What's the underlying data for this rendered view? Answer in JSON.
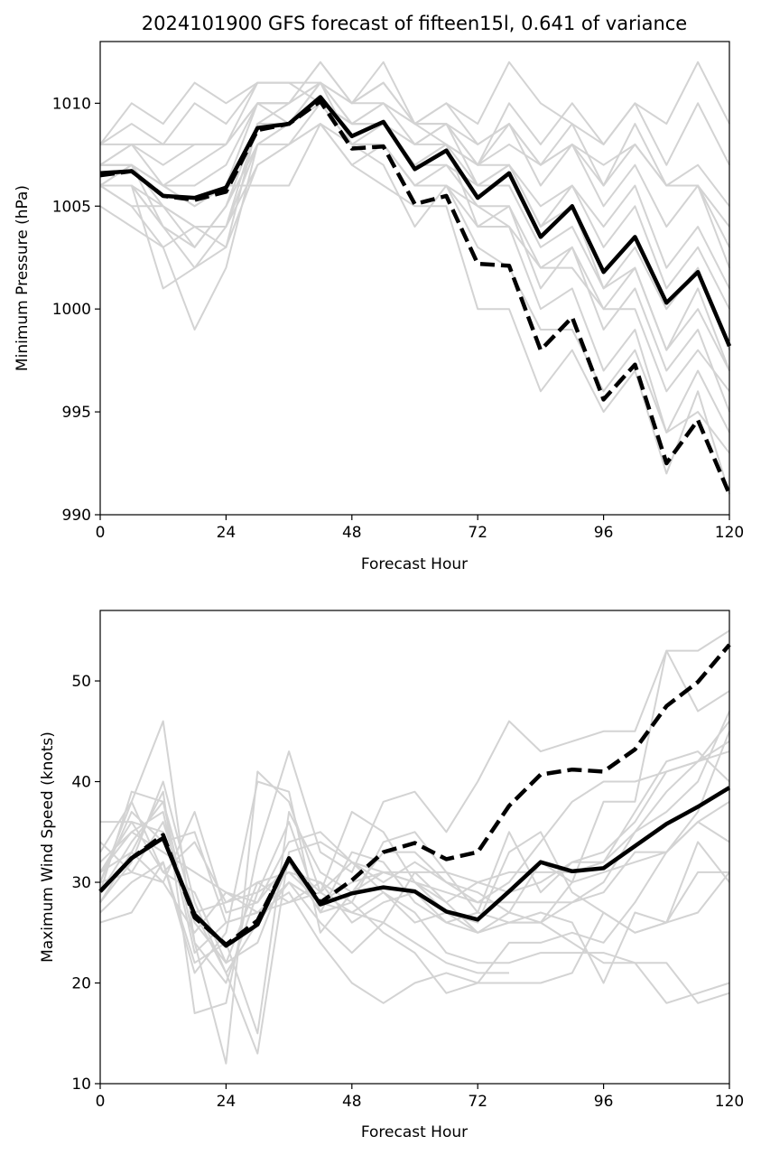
{
  "chart_data": [
    {
      "type": "line",
      "title": "2024101900 GFS forecast of fifteen15l, 0.641 of variance",
      "xlabel": "Forecast Hour",
      "ylabel": "Minimum Pressure (hPa)",
      "xlim": [
        0,
        120
      ],
      "ylim": [
        990,
        1013
      ],
      "xticks": [
        0,
        24,
        48,
        72,
        96,
        120
      ],
      "yticks": [
        990,
        995,
        1000,
        1005,
        1010
      ],
      "x": [
        0,
        6,
        12,
        18,
        24,
        30,
        36,
        42,
        48,
        54,
        60,
        66,
        72,
        78,
        84,
        90,
        96,
        102,
        108,
        114,
        120
      ],
      "colors": {
        "ensemble": "#d3d3d3",
        "highlight": "#000000"
      },
      "series": [
        {
          "style": "solid-black",
          "values": [
            1006.6,
            1006.7,
            1005.5,
            1005.4,
            1005.9,
            1008.8,
            1009.0,
            1010.3,
            1008.4,
            1009.1,
            1006.8,
            1007.7,
            1005.4,
            1006.6,
            1003.5,
            1005.0,
            1001.8,
            1003.5,
            1000.3,
            1001.8,
            998.2
          ]
        },
        {
          "style": "dashed-black",
          "values": [
            1006.5,
            1006.7,
            1005.5,
            1005.3,
            1005.7,
            1008.7,
            1009.0,
            1010.1,
            1007.8,
            1007.9,
            1005.1,
            1005.5,
            1002.2,
            1002.1,
            998.0,
            999.6,
            995.6,
            997.3,
            992.5,
            994.6,
            991.0
          ]
        },
        {
          "style": "ensemble",
          "values": [
            1006,
            1007,
            1005,
            1004,
            1003,
            1009,
            1010,
            1011,
            1009,
            1010,
            1008,
            1009,
            1006,
            1007,
            1004,
            1006,
            1003,
            1005,
            1001,
            1003,
            1000
          ]
        },
        {
          "style": "ensemble",
          "values": [
            1007,
            1008,
            1006,
            1005,
            1006,
            1010,
            1010,
            1012,
            1010,
            1011,
            1009,
            1010,
            1008,
            1009,
            1006,
            1008,
            1005,
            1007,
            1004,
            1006,
            1003
          ]
        },
        {
          "style": "ensemble",
          "values": [
            1008,
            1010,
            1009,
            1011,
            1010,
            1011,
            1011,
            1011,
            1010,
            1012,
            1009,
            1010,
            1009,
            1012,
            1010,
            1009,
            1008,
            1010,
            1009,
            1012,
            1009
          ]
        },
        {
          "style": "ensemble",
          "values": [
            1006,
            1006,
            1004,
            1002,
            1004,
            1008,
            1009,
            1010,
            1008,
            1009,
            1007,
            1008,
            1004,
            1005,
            1001,
            1003,
            999,
            1001,
            997,
            999,
            995
          ]
        },
        {
          "style": "ensemble",
          "values": [
            1005,
            1004,
            1003,
            999,
            1002,
            1008,
            1008,
            1009,
            1007,
            1006,
            1005,
            1005,
            1000,
            1000,
            996,
            998,
            995,
            997,
            992,
            996,
            991
          ]
        },
        {
          "style": "ensemble",
          "values": [
            1006,
            1006,
            1001,
            1002,
            1003,
            1007,
            1008,
            1010,
            1008,
            1007,
            1004,
            1006,
            1003,
            1002,
            999,
            999,
            996,
            998,
            994,
            995,
            993
          ]
        },
        {
          "style": "ensemble",
          "values": [
            1007,
            1007,
            1004,
            1003,
            1005,
            1009,
            1009,
            1010,
            1009,
            1009,
            1008,
            1008,
            1007,
            1007,
            1005,
            1006,
            1004,
            1006,
            1002,
            1004,
            1001
          ]
        },
        {
          "style": "ensemble",
          "values": [
            1008,
            1009,
            1008,
            1010,
            1009,
            1011,
            1011,
            1010,
            1009,
            1010,
            1009,
            1008,
            1007,
            1009,
            1007,
            1008,
            1006,
            1008,
            1006,
            1006,
            1002
          ]
        },
        {
          "style": "ensemble",
          "values": [
            1006,
            1007,
            1006,
            1007,
            1008,
            1010,
            1010,
            1012,
            1010,
            1011,
            1009,
            1009,
            1008,
            1009,
            1007,
            1009,
            1006,
            1009,
            1006,
            1007,
            1005
          ]
        },
        {
          "style": "ensemble",
          "values": [
            1006,
            1005,
            1003,
            1004,
            1004,
            1009,
            1009,
            1011,
            1008,
            1008,
            1006,
            1006,
            1004,
            1004,
            1000,
            1001,
            997,
            999,
            994,
            997,
            994
          ]
        },
        {
          "style": "ensemble",
          "values": [
            1006,
            1006,
            1005,
            1003,
            1005,
            1008,
            1009,
            1010,
            1009,
            1009,
            1007,
            1007,
            1005,
            1005,
            1002,
            1002,
            1000,
            1000,
            996,
            998,
            996
          ]
        },
        {
          "style": "ensemble",
          "values": [
            1007,
            1008,
            1007,
            1008,
            1008,
            1010,
            1010,
            1011,
            1010,
            1010,
            1009,
            1009,
            1007,
            1008,
            1007,
            1008,
            1007,
            1008,
            1006,
            1006,
            1004
          ]
        },
        {
          "style": "ensemble",
          "values": [
            1007,
            1007,
            1006,
            1006,
            1007,
            1010,
            1009,
            1010,
            1009,
            1009,
            1008,
            1009,
            1007,
            1010,
            1008,
            1010,
            1008,
            1010,
            1007,
            1010,
            1007
          ]
        },
        {
          "style": "ensemble",
          "values": [
            1006,
            1005,
            1005,
            1004,
            1004,
            1007,
            1008,
            1009,
            1007,
            1008,
            1006,
            1006,
            1005,
            1004,
            1002,
            1003,
            1000,
            1002,
            998,
            1000,
            997
          ]
        },
        {
          "style": "ensemble",
          "values": [
            1007,
            1007,
            1006,
            1005,
            1006,
            1006,
            1006,
            1009,
            1008,
            1008,
            1006,
            1007,
            1006,
            1006,
            1003,
            1004,
            1001,
            1002,
            998,
            1001,
            997
          ]
        },
        {
          "style": "ensemble",
          "values": [
            1008,
            1008,
            1008,
            1008,
            1008,
            1011,
            1011,
            null,
            null,
            null,
            null,
            null,
            null,
            null,
            null,
            null,
            null,
            null,
            null,
            null,
            null
          ]
        },
        {
          "style": "ensemble",
          "values": [
            1006,
            1006,
            1004,
            1003,
            1005,
            1009,
            1009,
            1011,
            1009,
            1009,
            1007,
            1008,
            1006,
            1007,
            1004,
            1005,
            1001,
            1003,
            1000,
            1002,
            998
          ]
        }
      ]
    },
    {
      "type": "line",
      "xlabel": "Forecast Hour",
      "ylabel": "Maximum Wind Speed (knots)",
      "xlim": [
        0,
        120
      ],
      "ylim": [
        10,
        57
      ],
      "xticks": [
        0,
        24,
        48,
        72,
        96,
        120
      ],
      "yticks": [
        10,
        20,
        30,
        40,
        50
      ],
      "x": [
        0,
        6,
        12,
        18,
        24,
        30,
        36,
        42,
        48,
        54,
        60,
        66,
        72,
        78,
        84,
        90,
        96,
        102,
        108,
        114,
        120
      ],
      "colors": {
        "ensemble": "#d3d3d3",
        "highlight": "#000000"
      },
      "series": [
        {
          "style": "solid-black",
          "values": [
            29.1,
            32.4,
            34.4,
            26.8,
            23.7,
            25.8,
            32.4,
            27.8,
            28.9,
            29.5,
            29.1,
            27.1,
            26.3,
            29.1,
            32.0,
            31.1,
            31.4,
            33.6,
            35.8,
            37.5,
            39.4
          ]
        },
        {
          "style": "dashed-black",
          "values": [
            29.1,
            32.4,
            34.7,
            26.5,
            23.8,
            26.2,
            32.3,
            28.0,
            30.2,
            33.0,
            33.9,
            32.3,
            33.0,
            37.6,
            40.7,
            41.2,
            41.0,
            43.2,
            47.5,
            49.9,
            53.6
          ]
        },
        {
          "style": "ensemble",
          "values": [
            30,
            38,
            46,
            24,
            12,
            41,
            38,
            29,
            37,
            35,
            30,
            27,
            26,
            33,
            35,
            29,
            27,
            25,
            26,
            27,
            31
          ]
        },
        {
          "style": "ensemble",
          "values": [
            28,
            33,
            39,
            17,
            18,
            33,
            43,
            33,
            31,
            38,
            39,
            35,
            40,
            46,
            43,
            44,
            45,
            45,
            53,
            53,
            55
          ]
        },
        {
          "style": "ensemble",
          "values": [
            31,
            36,
            35,
            27,
            21,
            26,
            30,
            26,
            23,
            26,
            31,
            28,
            25,
            26,
            26,
            28,
            30,
            35,
            39,
            42,
            43
          ]
        },
        {
          "style": "ensemble",
          "values": [
            27,
            30,
            32,
            22,
            24,
            15,
            37,
            31,
            29,
            31,
            30,
            28,
            30,
            29,
            30,
            32,
            32,
            35,
            37,
            40,
            47
          ]
        },
        {
          "style": "ensemble",
          "values": [
            29,
            39,
            38,
            24,
            20,
            29,
            31,
            28,
            27,
            26,
            24,
            22,
            21,
            21,
            null,
            null,
            null,
            null,
            null,
            null,
            null
          ]
        },
        {
          "style": "ensemble",
          "values": [
            32,
            35,
            37,
            23,
            26,
            27,
            29,
            24,
            20,
            18,
            20,
            21,
            20,
            20,
            20,
            21,
            27,
            25,
            26,
            34,
            30
          ]
        },
        {
          "style": "ensemble",
          "values": [
            30,
            31,
            36,
            26,
            22,
            24,
            32,
            27,
            28,
            25,
            23,
            19,
            20,
            24,
            24,
            25,
            24,
            28,
            33,
            36,
            34
          ]
        },
        {
          "style": "ensemble",
          "values": [
            36,
            36,
            31,
            34,
            28,
            29,
            36,
            27,
            33,
            32,
            28,
            26,
            25,
            26,
            27,
            26,
            20,
            27,
            26,
            31,
            31
          ]
        },
        {
          "style": "ensemble",
          "values": [
            26,
            27,
            32,
            21,
            25,
            40,
            39,
            25,
            29,
            33,
            33,
            30,
            28,
            28,
            28,
            28,
            29,
            33,
            33,
            37,
            45
          ]
        },
        {
          "style": "ensemble",
          "values": [
            33,
            38,
            31,
            29,
            22,
            30,
            28,
            30,
            26,
            28,
            29,
            26,
            27,
            26,
            26,
            30,
            38,
            38,
            53,
            47,
            49
          ]
        },
        {
          "style": "ensemble",
          "values": [
            30,
            37,
            34,
            35,
            26,
            27,
            30,
            28,
            30,
            31,
            30,
            29,
            28,
            30,
            34,
            38,
            40,
            40,
            41,
            42,
            46
          ]
        },
        {
          "style": "ensemble",
          "values": [
            28,
            32,
            40,
            28,
            21,
            13,
            33,
            34,
            32,
            29,
            27,
            23,
            22,
            22,
            23,
            23,
            23,
            22,
            18,
            19,
            20
          ]
        },
        {
          "style": "ensemble",
          "values": [
            34,
            31,
            30,
            37,
            27,
            28,
            34,
            35,
            32,
            30,
            32,
            30,
            29,
            27,
            26,
            24,
            22,
            22,
            22,
            18,
            19
          ]
        },
        {
          "style": "ensemble",
          "values": [
            31,
            33,
            30,
            25,
            29,
            27,
            28,
            29,
            27,
            29,
            26,
            27,
            25,
            27,
            32,
            30,
            31,
            32,
            33,
            36,
            38
          ]
        },
        {
          "style": "ensemble",
          "values": [
            29,
            34,
            38,
            27,
            28,
            30,
            31,
            30,
            28,
            34,
            35,
            31,
            27,
            35,
            29,
            32,
            33,
            36,
            41,
            42,
            44
          ]
        },
        {
          "style": "ensemble",
          "values": [
            31,
            35,
            33,
            31,
            29,
            28,
            32,
            29,
            32,
            31,
            31,
            31,
            30,
            31,
            31,
            31,
            32,
            37,
            42,
            43,
            40
          ]
        }
      ]
    }
  ]
}
